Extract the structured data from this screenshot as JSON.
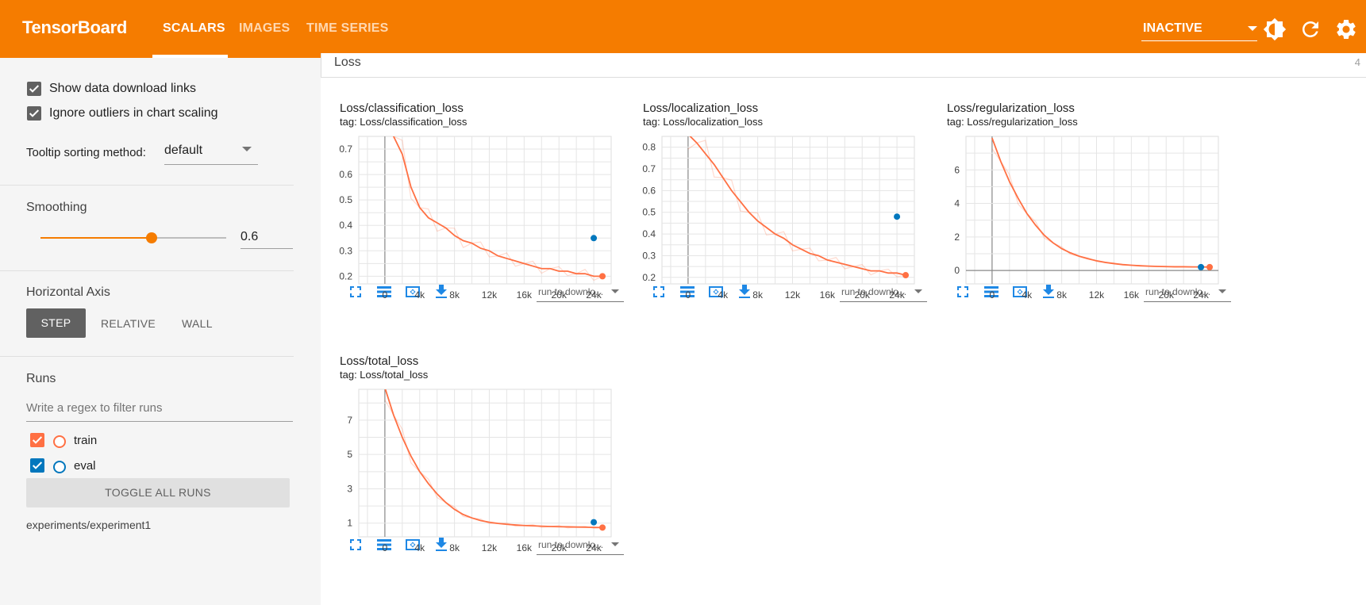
{
  "header": {
    "brand": "TensorBoard",
    "tabs": [
      {
        "label": "SCALARS",
        "active": true
      },
      {
        "label": "IMAGES",
        "active": false
      },
      {
        "label": "TIME SERIES",
        "active": false
      }
    ],
    "run_status": "INACTIVE",
    "icons": [
      "theme-toggle-icon",
      "refresh-icon",
      "settings-gear-icon"
    ]
  },
  "sidebar": {
    "show_download_links": {
      "label": "Show data download links",
      "checked": true
    },
    "ignore_outliers": {
      "label": "Ignore outliers in chart scaling",
      "checked": true
    },
    "tooltip_sorting": {
      "label": "Tooltip sorting method:",
      "value": "default"
    },
    "smoothing": {
      "label": "Smoothing",
      "value": "0.6",
      "fraction": 0.6
    },
    "horizontal_axis": {
      "label": "Horizontal Axis",
      "options": [
        "STEP",
        "RELATIVE",
        "WALL"
      ],
      "selected": "STEP"
    },
    "runs": {
      "label": "Runs",
      "filter_placeholder": "Write a regex to filter runs",
      "items": [
        {
          "name": "train",
          "checked": true,
          "color": "#ff7043"
        },
        {
          "name": "eval",
          "checked": true,
          "color": "#0277bd"
        }
      ],
      "toggle_all_label": "TOGGLE ALL RUNS",
      "logdir": "experiments/experiment1"
    }
  },
  "main": {
    "group": {
      "title": "Loss",
      "count": "4"
    },
    "run_download_label": "run to downlo...",
    "colors": {
      "train": "#ff7043",
      "eval": "#0277bd"
    }
  },
  "chart_data": [
    {
      "type": "line",
      "title": "Loss/classification_loss",
      "tag": "tag: Loss/classification_loss",
      "xticks": [
        "0",
        "4k",
        "8k",
        "12k",
        "16k",
        "20k",
        "24k"
      ],
      "yticks": [
        "0.2",
        "0.3",
        "0.4",
        "0.5",
        "0.6",
        "0.7"
      ],
      "xlim": [
        -3000,
        26000
      ],
      "ylim": [
        0.17,
        0.75
      ],
      "series": [
        {
          "name": "train",
          "x": [
            0,
            1000,
            2000,
            3000,
            4000,
            5000,
            6000,
            7000,
            8000,
            9000,
            10000,
            11000,
            12000,
            13000,
            14000,
            15000,
            16000,
            17000,
            18000,
            19000,
            20000,
            21000,
            22000,
            23000,
            24000,
            25000
          ],
          "values": [
            0.9,
            0.75,
            0.68,
            0.55,
            0.47,
            0.43,
            0.41,
            0.39,
            0.36,
            0.34,
            0.33,
            0.31,
            0.3,
            0.28,
            0.27,
            0.26,
            0.25,
            0.24,
            0.23,
            0.23,
            0.22,
            0.22,
            0.21,
            0.21,
            0.2,
            0.2
          ]
        },
        {
          "name": "eval",
          "x": [
            24000
          ],
          "values": [
            0.35
          ]
        }
      ]
    },
    {
      "type": "line",
      "title": "Loss/localization_loss",
      "tag": "tag: Loss/localization_loss",
      "xticks": [
        "0",
        "4k",
        "8k",
        "12k",
        "16k",
        "20k",
        "24k"
      ],
      "yticks": [
        "0.2",
        "0.3",
        "0.4",
        "0.5",
        "0.6",
        "0.7",
        "0.8"
      ],
      "xlim": [
        -3000,
        26000
      ],
      "ylim": [
        0.17,
        0.85
      ],
      "series": [
        {
          "name": "train",
          "x": [
            0,
            1000,
            2000,
            3000,
            4000,
            5000,
            6000,
            7000,
            8000,
            9000,
            10000,
            11000,
            12000,
            13000,
            14000,
            15000,
            16000,
            17000,
            18000,
            19000,
            20000,
            21000,
            22000,
            23000,
            24000,
            25000
          ],
          "values": [
            0.86,
            0.82,
            0.77,
            0.72,
            0.66,
            0.6,
            0.55,
            0.5,
            0.46,
            0.43,
            0.4,
            0.38,
            0.35,
            0.33,
            0.31,
            0.3,
            0.28,
            0.27,
            0.26,
            0.25,
            0.24,
            0.23,
            0.23,
            0.22,
            0.22,
            0.21
          ]
        },
        {
          "name": "eval",
          "x": [
            24000
          ],
          "values": [
            0.48
          ]
        }
      ]
    },
    {
      "type": "line",
      "title": "Loss/regularization_loss",
      "tag": "tag: Loss/regularization_loss",
      "xticks": [
        "0",
        "4k",
        "8k",
        "12k",
        "16k",
        "20k",
        "24k"
      ],
      "yticks": [
        "0",
        "2",
        "4",
        "6"
      ],
      "xlim": [
        -3000,
        26000
      ],
      "ylim": [
        -0.8,
        8
      ],
      "series": [
        {
          "name": "train",
          "x": [
            0,
            1000,
            2000,
            3000,
            4000,
            5000,
            6000,
            7000,
            8000,
            9000,
            10000,
            11000,
            12000,
            13000,
            14000,
            15000,
            16000,
            17000,
            18000,
            19000,
            20000,
            21000,
            22000,
            23000,
            24000,
            25000
          ],
          "values": [
            7.9,
            6.5,
            5.3,
            4.3,
            3.4,
            2.7,
            2.1,
            1.65,
            1.3,
            1.05,
            0.85,
            0.7,
            0.58,
            0.48,
            0.41,
            0.35,
            0.31,
            0.28,
            0.26,
            0.24,
            0.23,
            0.22,
            0.22,
            0.21,
            0.21,
            0.2
          ]
        },
        {
          "name": "eval",
          "x": [
            24000
          ],
          "values": [
            0.2
          ]
        }
      ]
    },
    {
      "type": "line",
      "title": "Loss/total_loss",
      "tag": "tag: Loss/total_loss",
      "xticks": [
        "0",
        "4k",
        "8k",
        "12k",
        "16k",
        "20k",
        "24k"
      ],
      "yticks": [
        "1",
        "3",
        "5",
        "7"
      ],
      "xlim": [
        -3000,
        26000
      ],
      "ylim": [
        0.2,
        8.8
      ],
      "series": [
        {
          "name": "train",
          "x": [
            0,
            1000,
            2000,
            3000,
            4000,
            5000,
            6000,
            7000,
            8000,
            9000,
            10000,
            11000,
            12000,
            13000,
            14000,
            15000,
            16000,
            17000,
            18000,
            19000,
            20000,
            21000,
            22000,
            23000,
            24000,
            25000
          ],
          "values": [
            8.9,
            7.3,
            6.0,
            4.9,
            4.0,
            3.3,
            2.7,
            2.2,
            1.8,
            1.5,
            1.3,
            1.15,
            1.05,
            0.98,
            0.93,
            0.89,
            0.86,
            0.84,
            0.82,
            0.8,
            0.79,
            0.78,
            0.77,
            0.76,
            0.75,
            0.74
          ]
        },
        {
          "name": "eval",
          "x": [
            24000
          ],
          "values": [
            1.05
          ]
        }
      ]
    }
  ]
}
